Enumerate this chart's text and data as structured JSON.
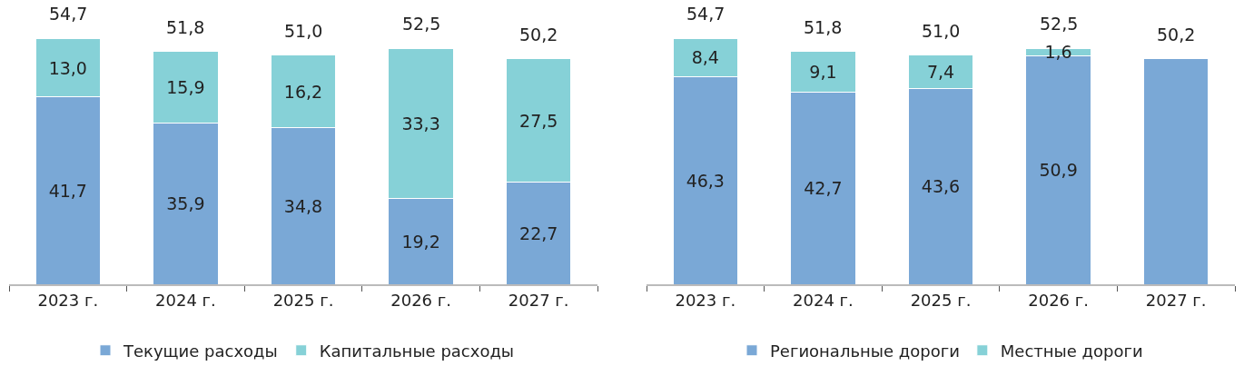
{
  "chart_data": [
    {
      "type": "bar",
      "stacked": true,
      "categories": [
        "2023 г.",
        "2024 г.",
        "2025 г.",
        "2026 г.",
        "2027 г."
      ],
      "legend": "bottom",
      "series": [
        {
          "name": "Текущие расходы",
          "color": "#7aa8d6",
          "values": [
            41.7,
            35.9,
            34.8,
            19.2,
            22.7
          ],
          "value_labels": [
            "41,7",
            "35,9",
            "34,8",
            "19,2",
            "22,7"
          ]
        },
        {
          "name": "Капитальные расходы",
          "color": "#86d1d7",
          "values": [
            13.0,
            15.9,
            16.2,
            33.3,
            27.5
          ],
          "value_labels": [
            "13,0",
            "15,9",
            "16,2",
            "33,3",
            "27,5"
          ]
        }
      ],
      "totals": [
        "54,7",
        "51,8",
        "51,0",
        "52,5",
        "50,2"
      ]
    },
    {
      "type": "bar",
      "stacked": true,
      "categories": [
        "2023 г.",
        "2024 г.",
        "2025 г.",
        "2026 г.",
        "2027 г."
      ],
      "legend": "bottom",
      "series": [
        {
          "name": "Региональные дороги",
          "color": "#7aa8d6",
          "values": [
            46.3,
            42.7,
            43.6,
            50.9,
            50.2
          ],
          "value_labels": [
            "46,3",
            "42,7",
            "43,6",
            "50,9",
            null
          ]
        },
        {
          "name": "Местные дороги",
          "color": "#86d1d7",
          "values": [
            8.4,
            9.1,
            7.4,
            1.6,
            null
          ],
          "value_labels": [
            "8,4",
            "9,1",
            "7,4",
            "1,6",
            null
          ]
        }
      ],
      "totals": [
        "54,7",
        "51,8",
        "51,0",
        "52,5",
        "50,2"
      ]
    }
  ]
}
